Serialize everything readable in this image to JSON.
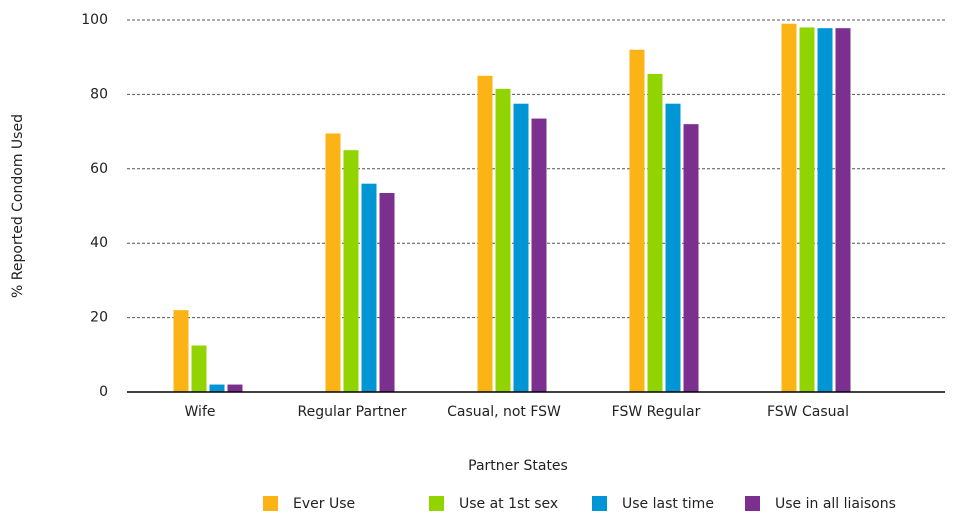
{
  "chart_data": {
    "type": "bar",
    "x_label": "Partner States",
    "y_label": "% Reported Condom Used",
    "categories": [
      "Wife",
      "Regular Partner",
      "Casual, not FSW",
      "FSW Regular",
      "FSW Casual"
    ],
    "series": [
      {
        "name": "Ever Use",
        "color": "#fbb316",
        "values": [
          22,
          69.5,
          85,
          92,
          99
        ]
      },
      {
        "name": "Use at 1st sex",
        "color": "#92d400",
        "values": [
          12.5,
          65,
          81.5,
          85.5,
          98
        ]
      },
      {
        "name": "Use last time",
        "color": "#0096d6",
        "values": [
          2,
          56,
          77.5,
          77.5,
          97.8
        ]
      },
      {
        "name": "Use in all liaisons",
        "color": "#7b2f8e",
        "values": [
          2,
          53.5,
          73.5,
          72,
          97.8
        ]
      }
    ],
    "ylim": [
      0,
      100
    ],
    "yticks": [
      0,
      20,
      40,
      60,
      80,
      100
    ],
    "grid": true,
    "legend": "bottom"
  }
}
